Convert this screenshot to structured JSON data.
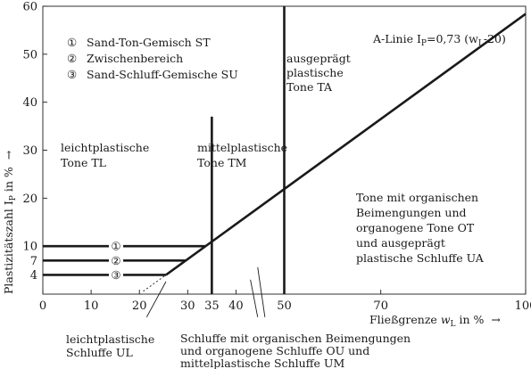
{
  "chart_data": {
    "type": "line",
    "xlabel": "Fließgrenze w_L in %",
    "ylabel": "Plastizitätszahl I_P in %",
    "xlim": [
      0,
      100
    ],
    "ylim": [
      0,
      60
    ],
    "x_ticks": [
      0,
      10,
      20,
      30,
      35,
      40,
      50,
      70,
      100
    ],
    "y_ticks": [
      4,
      7,
      10,
      20,
      30,
      40,
      50,
      60
    ],
    "grid": "dashed-none",
    "series": [
      {
        "name": "A-Linie I_P=0,73 (w_L-20)",
        "x": [
          25.5,
          100
        ],
        "y": [
          4,
          58.4
        ]
      }
    ],
    "A_line_label": "A-Linie I",
    "A_line_label_sub": "P",
    "A_line_label_rest": "=0,73 (w",
    "A_line_label_sub2": "L",
    "A_line_label_end": "-20)",
    "boundaries": [
      {
        "x": [
          0,
          25.5
        ],
        "y": [
          4,
          4
        ],
        "marker": "③"
      },
      {
        "x": [
          0,
          29.6
        ],
        "y": [
          7,
          7
        ],
        "marker": "②"
      },
      {
        "x": [
          0,
          33.7
        ],
        "y": [
          10,
          10
        ],
        "marker": "①"
      },
      {
        "x": [
          35,
          35
        ],
        "y": [
          0,
          37
        ]
      },
      {
        "x": [
          50,
          50
        ],
        "y": [
          0,
          60
        ]
      }
    ],
    "legend": {
      "items": [
        {
          "symbol": "①",
          "text": "Sand-Ton-Gemisch ST"
        },
        {
          "symbol": "②",
          "text": "Zwischenbereich"
        },
        {
          "symbol": "③",
          "text": "Sand-Schluff-Gemische SU"
        }
      ]
    },
    "zones": {
      "tl": [
        "leichtplastische",
        "Tone TL"
      ],
      "tm": [
        "mittelplastische",
        "Tone TM"
      ],
      "ta": [
        "ausgeprägt",
        "plastische",
        "Tone TA"
      ],
      "ot": [
        "Tone mit organischen",
        "Beimengungen und",
        "organogene Tone OT",
        "und ausgeprägt",
        "plastische Schluffe UA"
      ],
      "ul": [
        "leichtplastische",
        "Schluffe UL"
      ],
      "ou": [
        "Schluffe mit organischen Beimengungen",
        "und organogene Schluffe  OU  und",
        "mittelplastische Schluffe UM"
      ]
    },
    "x_axis_label_main": "Fließgrenze ",
    "x_axis_label_var": "w",
    "x_axis_label_sub": "L",
    "x_axis_label_unit": " in %",
    "x_axis_arrow": "→",
    "y_axis_label_main": "Plastizitätszahl I",
    "y_axis_label_sub": "P",
    "y_axis_label_unit": " in %",
    "y_axis_arrow": "→"
  }
}
